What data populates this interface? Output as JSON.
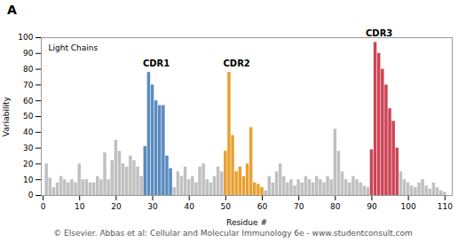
{
  "chart_data": {
    "type": "bar",
    "title": "A",
    "xlabel": "Residue #",
    "ylabel": "Variability",
    "x": [
      1,
      2,
      3,
      4,
      5,
      6,
      7,
      8,
      9,
      10,
      11,
      12,
      13,
      14,
      15,
      16,
      17,
      18,
      19,
      20,
      21,
      22,
      23,
      24,
      25,
      26,
      27,
      28,
      29,
      30,
      31,
      32,
      33,
      34,
      35,
      36,
      37,
      38,
      39,
      40,
      41,
      42,
      43,
      44,
      45,
      46,
      47,
      48,
      49,
      50,
      51,
      52,
      53,
      54,
      55,
      56,
      57,
      58,
      59,
      60,
      61,
      62,
      63,
      64,
      65,
      66,
      67,
      68,
      69,
      70,
      71,
      72,
      73,
      74,
      75,
      76,
      77,
      78,
      79,
      80,
      81,
      82,
      83,
      84,
      85,
      86,
      87,
      88,
      89,
      90,
      91,
      92,
      93,
      94,
      95,
      96,
      97,
      98,
      99,
      100,
      101,
      102,
      103,
      104,
      105,
      106,
      107,
      108,
      109,
      110
    ],
    "values": [
      20,
      11,
      5,
      8,
      12,
      10,
      8,
      10,
      8,
      20,
      10,
      10,
      8,
      8,
      12,
      10,
      27,
      10,
      22,
      35,
      28,
      20,
      18,
      25,
      22,
      18,
      12,
      31,
      78,
      70,
      60,
      57,
      57,
      25,
      17,
      5,
      15,
      12,
      18,
      10,
      12,
      8,
      18,
      20,
      10,
      8,
      12,
      18,
      15,
      28,
      78,
      38,
      15,
      18,
      12,
      20,
      43,
      8,
      7,
      5,
      3,
      12,
      8,
      15,
      20,
      12,
      8,
      10,
      6,
      10,
      8,
      12,
      10,
      8,
      12,
      10,
      8,
      12,
      10,
      42,
      28,
      15,
      10,
      8,
      12,
      10,
      8,
      6,
      5,
      29,
      97,
      90,
      80,
      70,
      55,
      47,
      30,
      15,
      10,
      8,
      6,
      5,
      8,
      10,
      6,
      4,
      8,
      5,
      3,
      2
    ],
    "colors": [
      "#C0C0C0",
      "#C0C0C0",
      "#C0C0C0",
      "#C0C0C0",
      "#C0C0C0",
      "#C0C0C0",
      "#C0C0C0",
      "#C0C0C0",
      "#C0C0C0",
      "#C0C0C0",
      "#C0C0C0",
      "#C0C0C0",
      "#C0C0C0",
      "#C0C0C0",
      "#C0C0C0",
      "#C0C0C0",
      "#C0C0C0",
      "#C0C0C0",
      "#C0C0C0",
      "#C0C0C0",
      "#C0C0C0",
      "#C0C0C0",
      "#C0C0C0",
      "#C0C0C0",
      "#C0C0C0",
      "#C0C0C0",
      "#C0C0C0",
      "#5A8BBF",
      "#5A8BBF",
      "#5A8BBF",
      "#5A8BBF",
      "#5A8BBF",
      "#5A8BBF",
      "#5A8BBF",
      "#5A8BBF",
      "#C0C0C0",
      "#C0C0C0",
      "#C0C0C0",
      "#C0C0C0",
      "#C0C0C0",
      "#C0C0C0",
      "#C0C0C0",
      "#C0C0C0",
      "#C0C0C0",
      "#C0C0C0",
      "#C0C0C0",
      "#C0C0C0",
      "#C0C0C0",
      "#C0C0C0",
      "#E8A030",
      "#E8A030",
      "#E8A030",
      "#E8A030",
      "#E8A030",
      "#E8A030",
      "#E8A030",
      "#E8A030",
      "#E8A030",
      "#E8A030",
      "#E8A030",
      "#C0C0C0",
      "#C0C0C0",
      "#C0C0C0",
      "#C0C0C0",
      "#C0C0C0",
      "#C0C0C0",
      "#C0C0C0",
      "#C0C0C0",
      "#C0C0C0",
      "#C0C0C0",
      "#C0C0C0",
      "#C0C0C0",
      "#C0C0C0",
      "#C0C0C0",
      "#C0C0C0",
      "#C0C0C0",
      "#C0C0C0",
      "#C0C0C0",
      "#C0C0C0",
      "#C0C0C0",
      "#C0C0C0",
      "#C0C0C0",
      "#C0C0C0",
      "#C0C0C0",
      "#C0C0C0",
      "#C0C0C0",
      "#C0C0C0",
      "#C0C0C0",
      "#C0C0C0",
      "#CC4455",
      "#CC4455",
      "#CC4455",
      "#CC4455",
      "#CC4455",
      "#CC4455",
      "#CC4455",
      "#CC4455",
      "#C0C0C0",
      "#C0C0C0",
      "#C0C0C0",
      "#C0C0C0",
      "#C0C0C0",
      "#C0C0C0",
      "#C0C0C0",
      "#C0C0C0",
      "#C0C0C0",
      "#C0C0C0",
      "#C0C0C0",
      "#C0C0C0",
      "#C0C0C0"
    ],
    "xlim": [
      -0.5,
      112
    ],
    "xticks": [
      0,
      10,
      20,
      30,
      40,
      50,
      60,
      70,
      80,
      90,
      100,
      110
    ],
    "ylim": [
      0,
      100
    ],
    "yticks": [
      0,
      10,
      20,
      30,
      40,
      50,
      60,
      70,
      80,
      90,
      100
    ],
    "grid": false,
    "annotations": [
      {
        "text": "Light Chains"
      },
      {
        "text": "CDR1",
        "x": 31,
        "y": 82
      },
      {
        "text": "CDR2",
        "x": 53,
        "y": 82
      },
      {
        "text": "CDR3",
        "x": 92,
        "y": 101
      }
    ],
    "caption": "© Elsevier. Abbas et al: Cellular and Molecular Immunology 6e - www.studentconsult.com"
  }
}
